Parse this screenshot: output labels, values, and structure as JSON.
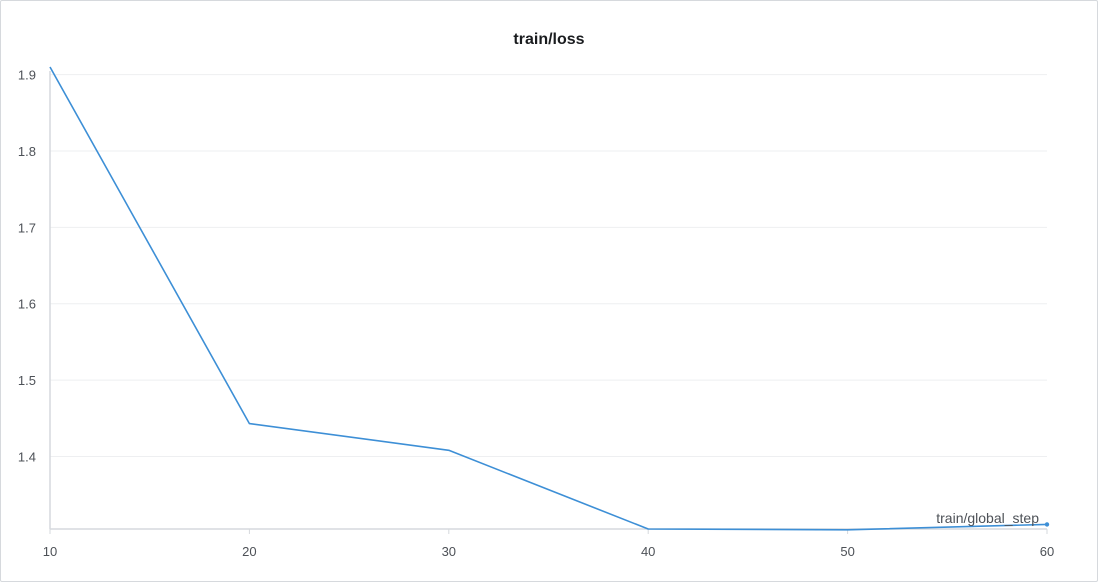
{
  "chart_data": {
    "type": "line",
    "title": "train/loss",
    "xlabel": "train/global_step",
    "ylabel": "",
    "x": [
      10,
      20,
      30,
      40,
      50,
      60
    ],
    "series": [
      {
        "values": [
          1.91,
          1.443,
          1.408,
          1.305,
          1.304,
          1.311
        ],
        "color": "#3d8fd6"
      }
    ],
    "xlim": [
      10,
      60
    ],
    "ylim": [
      1.305,
      1.91
    ],
    "xticks": [
      10,
      20,
      30,
      40,
      50,
      60
    ],
    "yticks": [
      1.4,
      1.5,
      1.6,
      1.7,
      1.8,
      1.9
    ],
    "grid": true,
    "legend": "none",
    "colors": {
      "line": "#3d8fd6",
      "grid": "#eeeff1",
      "axis": "#d6d9dd",
      "text": "#4d5157"
    }
  }
}
